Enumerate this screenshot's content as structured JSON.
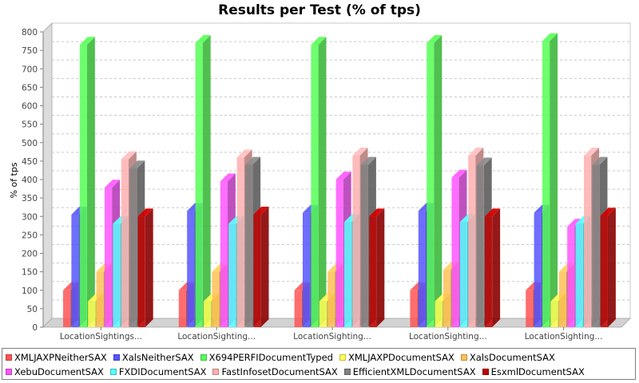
{
  "chart_data": {
    "type": "bar",
    "title": "Results per Test (% of tps)",
    "ylabel": "% of tps",
    "xlabel": "",
    "ylim": [
      0,
      800
    ],
    "yticks": [
      0,
      50,
      100,
      150,
      200,
      250,
      300,
      350,
      400,
      450,
      500,
      550,
      600,
      650,
      700,
      750,
      800
    ],
    "grid": true,
    "legend_position": "bottom",
    "categories": [
      "LocationSightings...",
      "LocationSighting...",
      "LocationSighting...",
      "LocationSighting...",
      "LocationSighting..."
    ],
    "series": [
      {
        "name": "XMLJAXPNeitherSAX",
        "color": "#ff5555",
        "values": [
          100,
          100,
          100,
          100,
          100
        ]
      },
      {
        "name": "XalsNeitherSAX",
        "color": "#5555ff",
        "values": [
          305,
          315,
          310,
          315,
          310
        ]
      },
      {
        "name": "X694PERFIDocumentTyped",
        "color": "#55ff55",
        "values": [
          765,
          770,
          765,
          770,
          775
        ]
      },
      {
        "name": "XMLJAXPDocumentSAX",
        "color": "#ffff55",
        "values": [
          70,
          70,
          70,
          70,
          70
        ]
      },
      {
        "name": "XalsDocumentSAX",
        "color": "#ffc055",
        "values": [
          150,
          150,
          150,
          155,
          150
        ]
      },
      {
        "name": "XebuDocumentSAX",
        "color": "#ff55ff",
        "values": [
          378,
          395,
          400,
          405,
          272
        ]
      },
      {
        "name": "FXDIDocumentSAX",
        "color": "#55ffff",
        "values": [
          280,
          280,
          285,
          285,
          280
        ]
      },
      {
        "name": "FastInfosetDocumentSAX",
        "color": "#ffafaf",
        "values": [
          455,
          460,
          465,
          465,
          465
        ]
      },
      {
        "name": "EfficientXMLDocumentSAX",
        "color": "#808080",
        "values": [
          430,
          440,
          440,
          438,
          440
        ]
      },
      {
        "name": "EsxmlDocumentSAX",
        "color": "#c00000",
        "values": [
          300,
          305,
          300,
          300,
          302
        ]
      }
    ]
  }
}
